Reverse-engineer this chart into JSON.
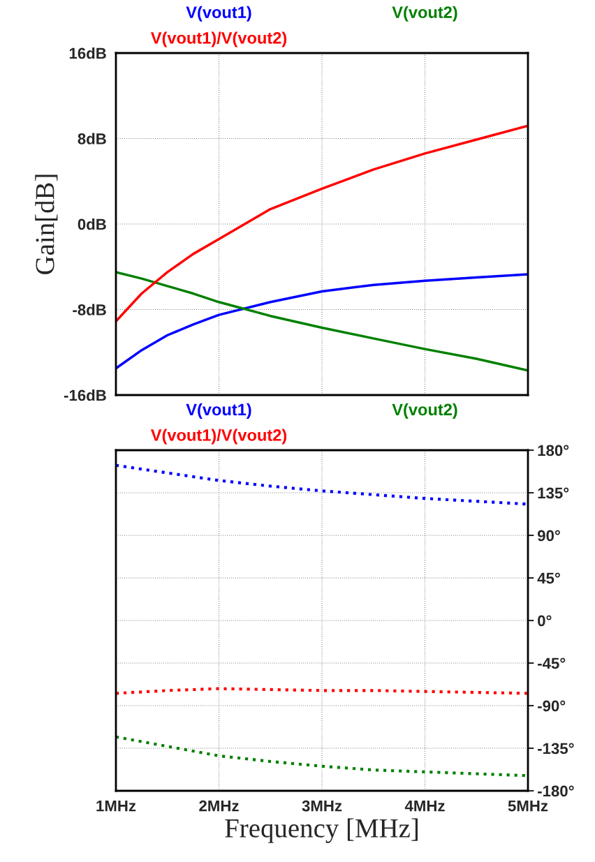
{
  "chart_data": [
    {
      "type": "line",
      "ylabel": "Gain[dB]",
      "x": [
        1,
        1.25,
        1.5,
        1.75,
        2,
        2.5,
        3,
        3.5,
        4,
        4.5,
        5
      ],
      "series": [
        {
          "name": "V(vout1)",
          "color": "#0000ff",
          "values": [
            -13.5,
            -11.8,
            -10.4,
            -9.4,
            -8.5,
            -7.3,
            -6.3,
            -5.7,
            -5.3,
            -5.0,
            -4.7
          ]
        },
        {
          "name": "V(vout2)",
          "color": "#008000",
          "values": [
            -4.5,
            -5.1,
            -5.8,
            -6.5,
            -7.3,
            -8.6,
            -9.7,
            -10.7,
            -11.7,
            -12.6,
            -13.7
          ]
        },
        {
          "name": "V(vout1)/V(vout2)",
          "color": "#ff0000",
          "values": [
            -9.1,
            -6.5,
            -4.5,
            -2.8,
            -1.4,
            1.4,
            3.3,
            5.1,
            6.6,
            7.9,
            9.2
          ]
        }
      ],
      "xlim": [
        1,
        5
      ],
      "xticks": [
        {
          "value": 1,
          "label": null
        },
        {
          "value": 2,
          "label": null
        },
        {
          "value": 3,
          "label": null
        },
        {
          "value": 4,
          "label": null
        },
        {
          "value": 5,
          "label": null
        }
      ],
      "ylim": [
        -16,
        16
      ],
      "yticks": [
        {
          "value": -16,
          "label": "-16dB"
        },
        {
          "value": -8,
          "label": "-8dB"
        },
        {
          "value": 0,
          "label": "0dB"
        },
        {
          "value": 8,
          "label": "8dB"
        },
        {
          "value": 16,
          "label": "16dB"
        }
      ],
      "grid": true,
      "legend": "top",
      "line_style": "solid",
      "tick_labels": "y"
    },
    {
      "type": "line",
      "xlabel": "Frequency [MHz]",
      "x": [
        1,
        1.5,
        2,
        2.5,
        3,
        3.5,
        4,
        4.5,
        5
      ],
      "series": [
        {
          "name": "V(vout1)",
          "color": "#0000ff",
          "values": [
            164,
            156,
            148,
            142,
            137,
            133,
            129,
            126,
            123
          ]
        },
        {
          "name": "V(vout2)",
          "color": "#008000",
          "values": [
            -123,
            -133,
            -143,
            -149,
            -154,
            -158,
            -160,
            -162,
            -164
          ]
        },
        {
          "name": "V(vout1)/V(vout2)",
          "color": "#ff0000",
          "values": [
            -77,
            -74,
            -72,
            -73,
            -74,
            -74,
            -75,
            -76,
            -77
          ]
        }
      ],
      "xlim": [
        1,
        5
      ],
      "xticks": [
        {
          "value": 1,
          "label": "1MHz"
        },
        {
          "value": 2,
          "label": "2MHz"
        },
        {
          "value": 3,
          "label": "3MHz"
        },
        {
          "value": 4,
          "label": "4MHz"
        },
        {
          "value": 5,
          "label": "5MHz"
        }
      ],
      "ylim": [
        -180,
        180
      ],
      "yticks": [
        {
          "value": -180,
          "label": "-180°"
        },
        {
          "value": -135,
          "label": "-135°"
        },
        {
          "value": -90,
          "label": "-90°"
        },
        {
          "value": -45,
          "label": "-45°"
        },
        {
          "value": 0,
          "label": "0°"
        },
        {
          "value": 45,
          "label": "45°"
        },
        {
          "value": 90,
          "label": "90°"
        },
        {
          "value": 135,
          "label": "135°"
        },
        {
          "value": 180,
          "label": "180°"
        }
      ],
      "grid": true,
      "legend": "top",
      "line_style": "dotted"
    }
  ]
}
